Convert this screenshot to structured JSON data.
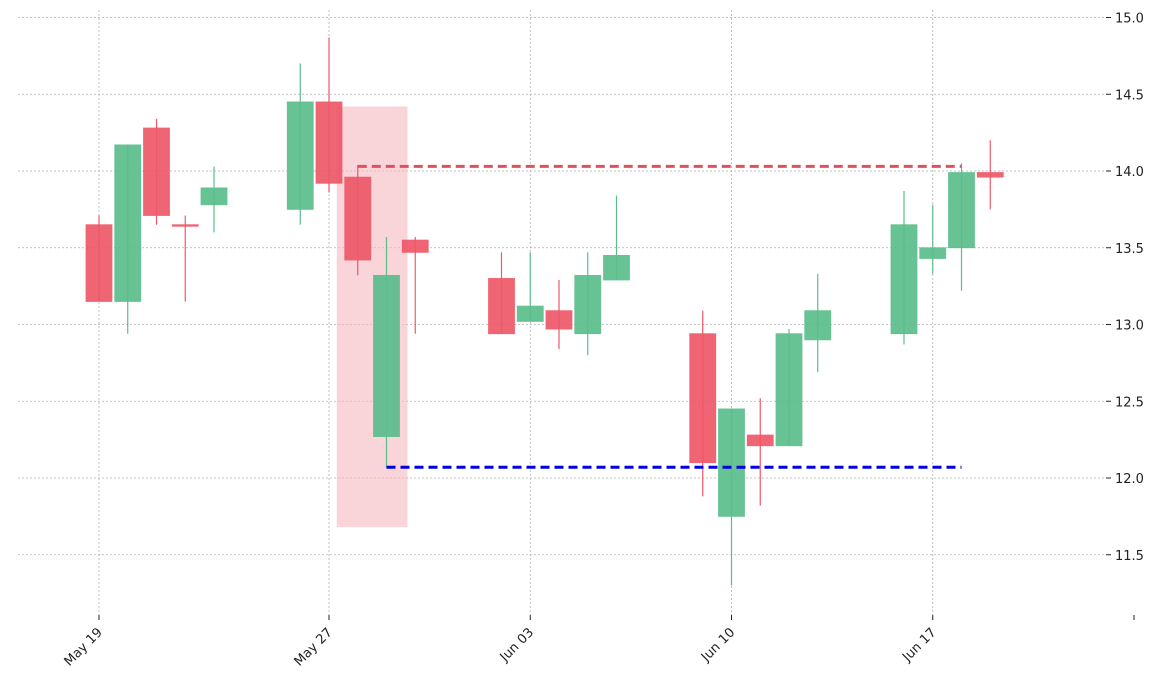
{
  "chart_data": {
    "type": "candlestick",
    "title": "",
    "xlabel": "",
    "ylabel": "",
    "ylim": [
      11.12,
      15.08
    ],
    "grid": true,
    "y_ticks": [
      "11.5",
      "12.0",
      "12.5",
      "13.0",
      "13.5",
      "14.0",
      "14.5",
      "15.0"
    ],
    "y_tick_values": [
      11.5,
      12.0,
      12.5,
      13.0,
      13.5,
      14.0,
      14.5,
      15.0
    ],
    "x_ticks": [
      {
        "date": "2019-05-19",
        "label": "May 19"
      },
      {
        "date": "2019-05-27",
        "label": "May 27"
      },
      {
        "date": "2019-06-03",
        "label": "Jun 03"
      },
      {
        "date": "2019-06-10",
        "label": "Jun 10"
      },
      {
        "date": "2019-06-17",
        "label": "Jun 17"
      },
      {
        "date": "2019-06-24",
        "label": ""
      }
    ],
    "candles": [
      {
        "date": "2019-05-19",
        "open": 13.65,
        "high": 13.71,
        "low": 13.15,
        "close": 13.15
      },
      {
        "date": "2019-05-20",
        "open": 13.15,
        "high": 14.17,
        "low": 12.94,
        "close": 14.17
      },
      {
        "date": "2019-05-21",
        "open": 14.28,
        "high": 14.34,
        "low": 13.65,
        "close": 13.71
      },
      {
        "date": "2019-05-22",
        "open": 13.65,
        "high": 13.71,
        "low": 13.15,
        "close": 13.64
      },
      {
        "date": "2019-05-23",
        "open": 13.78,
        "high": 14.03,
        "low": 13.6,
        "close": 13.89
      },
      {
        "date": "2019-05-26",
        "open": 13.75,
        "high": 14.7,
        "low": 13.65,
        "close": 14.45
      },
      {
        "date": "2019-05-27",
        "open": 14.45,
        "high": 14.87,
        "low": 13.86,
        "close": 13.92
      },
      {
        "date": "2019-05-28",
        "open": 13.96,
        "high": 14.04,
        "low": 13.32,
        "close": 13.42
      },
      {
        "date": "2019-05-29",
        "open": 12.27,
        "high": 13.57,
        "low": 12.07,
        "close": 13.32
      },
      {
        "date": "2019-05-30",
        "open": 13.55,
        "high": 13.57,
        "low": 12.94,
        "close": 13.47
      },
      {
        "date": "2019-06-02",
        "open": 13.3,
        "high": 13.47,
        "low": 12.94,
        "close": 12.94
      },
      {
        "date": "2019-06-03",
        "open": 13.02,
        "high": 13.47,
        "low": 13.02,
        "close": 13.12
      },
      {
        "date": "2019-06-04",
        "open": 13.09,
        "high": 13.29,
        "low": 12.84,
        "close": 12.97
      },
      {
        "date": "2019-06-05",
        "open": 12.94,
        "high": 13.47,
        "low": 12.8,
        "close": 13.32
      },
      {
        "date": "2019-06-06",
        "open": 13.29,
        "high": 13.84,
        "low": 13.29,
        "close": 13.45
      },
      {
        "date": "2019-06-09",
        "open": 12.94,
        "high": 13.09,
        "low": 11.88,
        "close": 12.1
      },
      {
        "date": "2019-06-10",
        "open": 11.75,
        "high": 12.45,
        "low": 11.3,
        "close": 12.45
      },
      {
        "date": "2019-06-11",
        "open": 12.28,
        "high": 12.52,
        "low": 11.82,
        "close": 12.21
      },
      {
        "date": "2019-06-12",
        "open": 12.21,
        "high": 12.97,
        "low": 12.21,
        "close": 12.94
      },
      {
        "date": "2019-06-13",
        "open": 12.9,
        "high": 13.33,
        "low": 12.69,
        "close": 13.09
      },
      {
        "date": "2019-06-16",
        "open": 12.94,
        "high": 13.87,
        "low": 12.87,
        "close": 13.65
      },
      {
        "date": "2019-06-17",
        "open": 13.43,
        "high": 13.78,
        "low": 13.33,
        "close": 13.5
      },
      {
        "date": "2019-06-18",
        "open": 13.5,
        "high": 14.05,
        "low": 13.22,
        "close": 13.99
      },
      {
        "date": "2019-06-19",
        "open": 13.99,
        "high": 14.2,
        "low": 13.75,
        "close": 13.96
      }
    ],
    "highlight_region": {
      "start": "2019-05-28",
      "end": "2019-05-29",
      "y_low": 11.68,
      "y_high": 14.42,
      "color": "#f5b7bf"
    },
    "annotations": [
      {
        "kind": "hline",
        "y": 14.03,
        "from": "2019-05-28",
        "to": "2019-06-18",
        "color": "#e0505f",
        "style": "dashed"
      },
      {
        "kind": "hline",
        "y": 12.07,
        "from": "2019-05-29",
        "to": "2019-06-18",
        "color": "#0000dd",
        "style": "dashed"
      }
    ],
    "colors": {
      "up": "#5bbd8c",
      "down": "#ee5869",
      "grid": "#b0b0b0",
      "axis_text": "#222222"
    }
  }
}
